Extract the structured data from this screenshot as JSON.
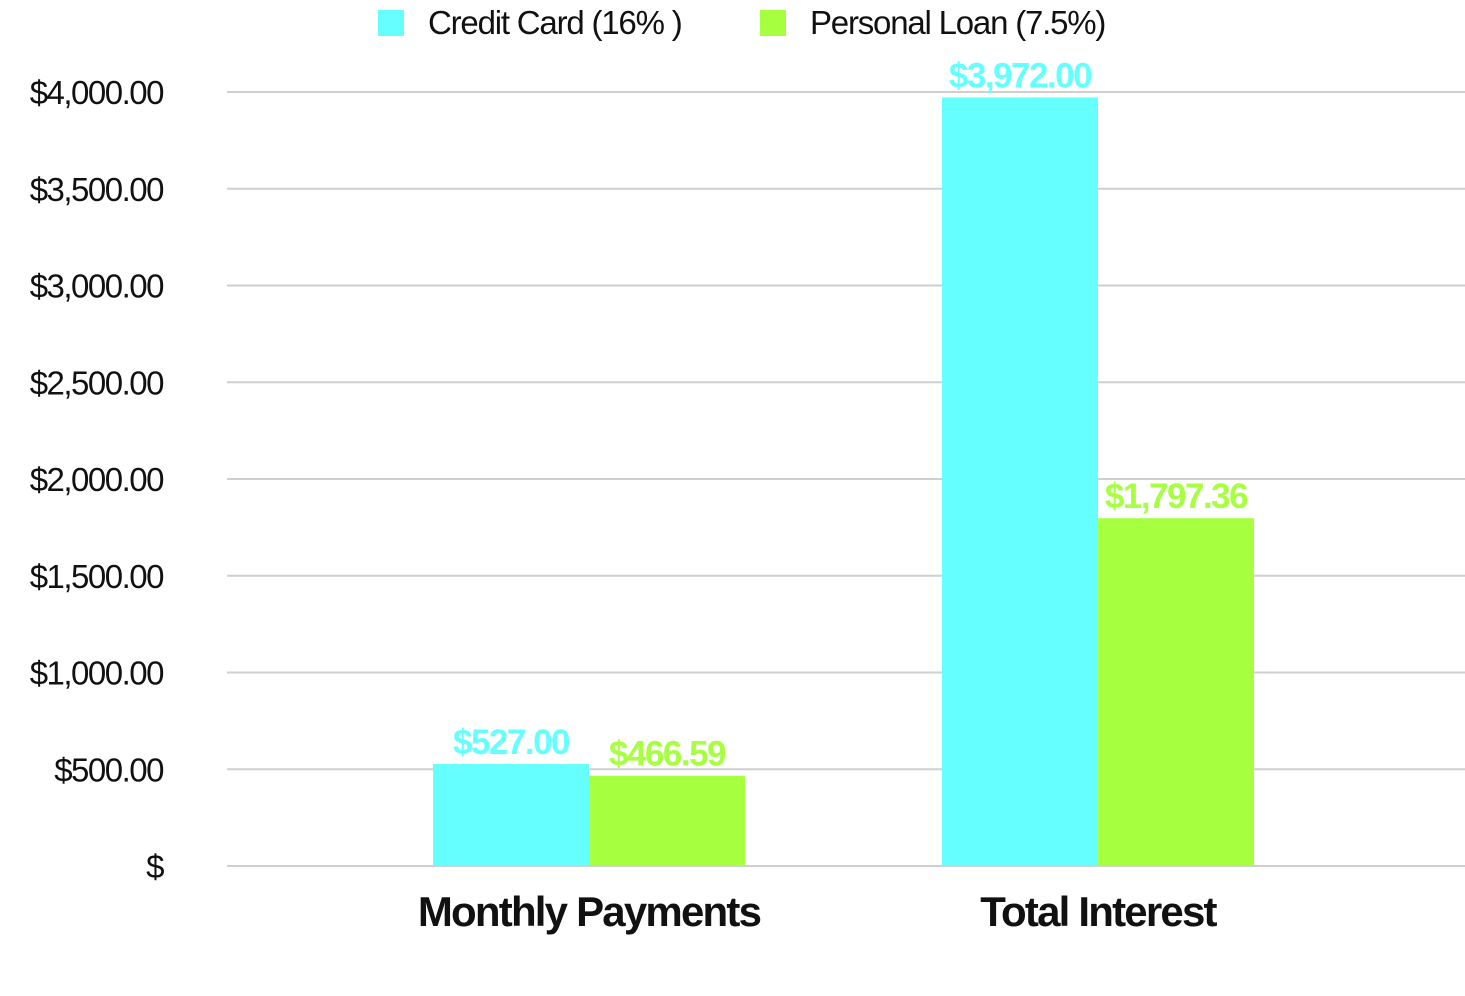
{
  "chart_data": {
    "type": "bar",
    "title": "",
    "xlabel": "",
    "ylabel": "",
    "categories": [
      "Monthly Payments",
      "Total Interest"
    ],
    "series": [
      {
        "name": "Credit Card (16% )",
        "color": "#66ffff",
        "values": [
          527.0,
          3972.0
        ],
        "labels": [
          "$527.00",
          "$3,972.00"
        ]
      },
      {
        "name": "Personal Loan (7.5%)",
        "color": "#a6ff3f",
        "values": [
          466.59,
          1797.36
        ],
        "labels": [
          "$466.59",
          "$1,797.36"
        ]
      }
    ],
    "ylim": [
      0,
      4000
    ],
    "yticks": [
      0,
      500,
      1000,
      1500,
      2000,
      2500,
      3000,
      3500,
      4000
    ],
    "ytick_labels": [
      "$",
      "$500.00",
      "$1,000.00",
      "$1,500.00",
      "$2,000.00",
      "$2,500.00",
      "$3,000.00",
      "$3,500.00",
      "$4,000.00"
    ],
    "grid": true,
    "legend_position": "top-center"
  }
}
